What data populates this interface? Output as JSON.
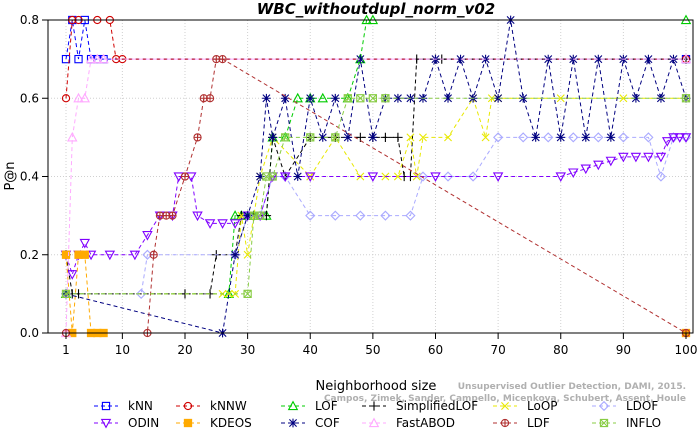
{
  "chart_data": {
    "type": "line",
    "title": "WBC_withoutdupl_norm_v02",
    "xlabel": "Neighborhood size",
    "ylabel": "P@n",
    "xlim": [
      1,
      100
    ],
    "ylim": [
      0,
      0.8
    ],
    "xticks": [
      1,
      10,
      20,
      30,
      40,
      50,
      60,
      70,
      80,
      90,
      100
    ],
    "yticks": [
      0.0,
      0.2,
      0.4,
      0.6,
      0.8
    ],
    "xtick_labels": [
      "1",
      "10",
      "20",
      "30",
      "40",
      "50",
      "60",
      "70",
      "80",
      "90",
      "100"
    ],
    "ytick_labels": [
      "0.0",
      "0.2",
      "0.4",
      "0.6",
      "0.8"
    ],
    "grid": true,
    "legend_position": "bottom",
    "watermark": [
      "Unsupervised Outlier Detection, DAMI, 2015.",
      "Campos, Zimek, Sander, Campello, Micenkova, Schubert, Assent, Houle"
    ],
    "series": [
      {
        "name": "kNN",
        "color": "#0000ff",
        "marker": "square",
        "x": [
          1,
          2,
          3,
          4,
          5,
          6,
          7,
          100
        ],
        "y": [
          0.7,
          0.8,
          0.7,
          0.8,
          0.7,
          0.7,
          0.7,
          0.7
        ]
      },
      {
        "name": "kNNW",
        "color": "#d00000",
        "marker": "circle",
        "x": [
          1,
          2,
          3,
          6,
          8,
          9,
          10,
          100
        ],
        "y": [
          0.6,
          0.8,
          0.8,
          0.8,
          0.8,
          0.7,
          0.7,
          0.7
        ]
      },
      {
        "name": "LOF",
        "color": "#00cc00",
        "marker": "triangle-up",
        "x": [
          1,
          27,
          28,
          29,
          30,
          31,
          33,
          34,
          36,
          38,
          40,
          42,
          46,
          48,
          49,
          50,
          100
        ],
        "y": [
          0.1,
          0.1,
          0.3,
          0.3,
          0.3,
          0.3,
          0.3,
          0.5,
          0.5,
          0.6,
          0.6,
          0.6,
          0.6,
          0.7,
          0.8,
          0.8,
          0.8
        ]
      },
      {
        "name": "SimplifiedLOF",
        "color": "#000000",
        "marker": "plus",
        "x": [
          1,
          2,
          3,
          20,
          24,
          25,
          28,
          29,
          31,
          33,
          34,
          36,
          40,
          44,
          48,
          50,
          52,
          54,
          55,
          56,
          57,
          60,
          61,
          100
        ],
        "y": [
          0.2,
          0.1,
          0.1,
          0.1,
          0.1,
          0.2,
          0.2,
          0.3,
          0.3,
          0.3,
          0.5,
          0.4,
          0.5,
          0.5,
          0.5,
          0.5,
          0.5,
          0.5,
          0.4,
          0.4,
          0.7,
          0.7,
          0.7,
          0.7
        ]
      },
      {
        "name": "LoOP",
        "color": "#e8e800",
        "marker": "cross",
        "x": [
          1,
          26,
          27,
          28,
          29,
          30,
          32,
          34,
          40,
          44,
          48,
          52,
          54,
          56,
          57,
          58,
          62,
          66,
          68,
          69,
          70,
          80,
          90,
          100
        ],
        "y": [
          0.1,
          0.1,
          0.1,
          0.1,
          0.3,
          0.2,
          0.4,
          0.5,
          0.4,
          0.5,
          0.4,
          0.4,
          0.4,
          0.5,
          0.4,
          0.5,
          0.5,
          0.6,
          0.5,
          0.6,
          0.6,
          0.6,
          0.6,
          0.6
        ]
      },
      {
        "name": "LDOF",
        "color": "#aaaaff",
        "marker": "diamond",
        "x": [
          1,
          13,
          14,
          28,
          30,
          32,
          34,
          36,
          40,
          44,
          48,
          52,
          56,
          58,
          62,
          66,
          70,
          74,
          78,
          82,
          86,
          90,
          94,
          96,
          98,
          100
        ],
        "y": [
          0.1,
          0.1,
          0.2,
          0.2,
          0.3,
          0.3,
          0.4,
          0.4,
          0.3,
          0.3,
          0.3,
          0.3,
          0.3,
          0.4,
          0.4,
          0.4,
          0.5,
          0.5,
          0.5,
          0.5,
          0.5,
          0.5,
          0.5,
          0.4,
          0.5,
          0.5
        ]
      },
      {
        "name": "ODIN",
        "color": "#8000ff",
        "marker": "triangle-down",
        "x": [
          1,
          2,
          3,
          4,
          5,
          8,
          12,
          14,
          16,
          18,
          19,
          21,
          22,
          24,
          26,
          28,
          30,
          32,
          34,
          36,
          40,
          50,
          60,
          70,
          80,
          82,
          84,
          86,
          88,
          90,
          92,
          94,
          96,
          97,
          98,
          99,
          100
        ],
        "y": [
          0.2,
          0.15,
          0.2,
          0.23,
          0.2,
          0.2,
          0.2,
          0.25,
          0.3,
          0.3,
          0.4,
          0.4,
          0.3,
          0.28,
          0.28,
          0.28,
          0.3,
          0.3,
          0.4,
          0.4,
          0.4,
          0.4,
          0.4,
          0.4,
          0.4,
          0.41,
          0.42,
          0.43,
          0.44,
          0.45,
          0.45,
          0.45,
          0.45,
          0.49,
          0.5,
          0.5,
          0.5
        ]
      },
      {
        "name": "KDEOS",
        "color": "#ffaa00",
        "marker": "square-filled",
        "x": [
          1,
          2,
          3,
          4,
          5,
          6,
          7,
          100
        ],
        "y": [
          0.2,
          0.0,
          0.2,
          0.2,
          0.0,
          0.0,
          0.0,
          0.0
        ]
      },
      {
        "name": "COF",
        "color": "#000080",
        "marker": "asterisk",
        "x": [
          1,
          26,
          28,
          30,
          32,
          33,
          34,
          36,
          38,
          40,
          42,
          44,
          46,
          48,
          50,
          52,
          54,
          56,
          58,
          60,
          62,
          64,
          66,
          68,
          70,
          72,
          74,
          76,
          78,
          80,
          82,
          84,
          86,
          88,
          90,
          92,
          94,
          96,
          98,
          100
        ],
        "y": [
          0.1,
          0.0,
          0.2,
          0.3,
          0.4,
          0.6,
          0.5,
          0.6,
          0.4,
          0.6,
          0.5,
          0.6,
          0.5,
          0.7,
          0.5,
          0.6,
          0.6,
          0.6,
          0.6,
          0.7,
          0.6,
          0.7,
          0.6,
          0.7,
          0.6,
          0.8,
          0.6,
          0.5,
          0.7,
          0.5,
          0.7,
          0.5,
          0.7,
          0.5,
          0.7,
          0.6,
          0.7,
          0.6,
          0.7,
          0.6
        ]
      },
      {
        "name": "FastABOD",
        "color": "#ffaaff",
        "marker": "triangle-up-open",
        "x": [
          1,
          2,
          3,
          4,
          5,
          6,
          7,
          100
        ],
        "y": [
          0.0,
          0.5,
          0.6,
          0.6,
          0.7,
          0.7,
          0.7,
          0.7
        ]
      },
      {
        "name": "LDF",
        "color": "#b03030",
        "marker": "circle-plus",
        "x": [
          1,
          14,
          15,
          16,
          17,
          18,
          20,
          22,
          23,
          24,
          25,
          26,
          100
        ],
        "y": [
          0.0,
          0.0,
          0.2,
          0.3,
          0.3,
          0.3,
          0.4,
          0.5,
          0.6,
          0.6,
          0.7,
          0.7,
          0.0
        ]
      },
      {
        "name": "INFLO",
        "color": "#88cc44",
        "marker": "square-x",
        "x": [
          1,
          30,
          31,
          32,
          33,
          34,
          36,
          40,
          44,
          46,
          48,
          50,
          52,
          100
        ],
        "y": [
          0.1,
          0.1,
          0.3,
          0.3,
          0.4,
          0.4,
          0.5,
          0.5,
          0.5,
          0.6,
          0.6,
          0.6,
          0.6,
          0.6
        ]
      }
    ]
  }
}
